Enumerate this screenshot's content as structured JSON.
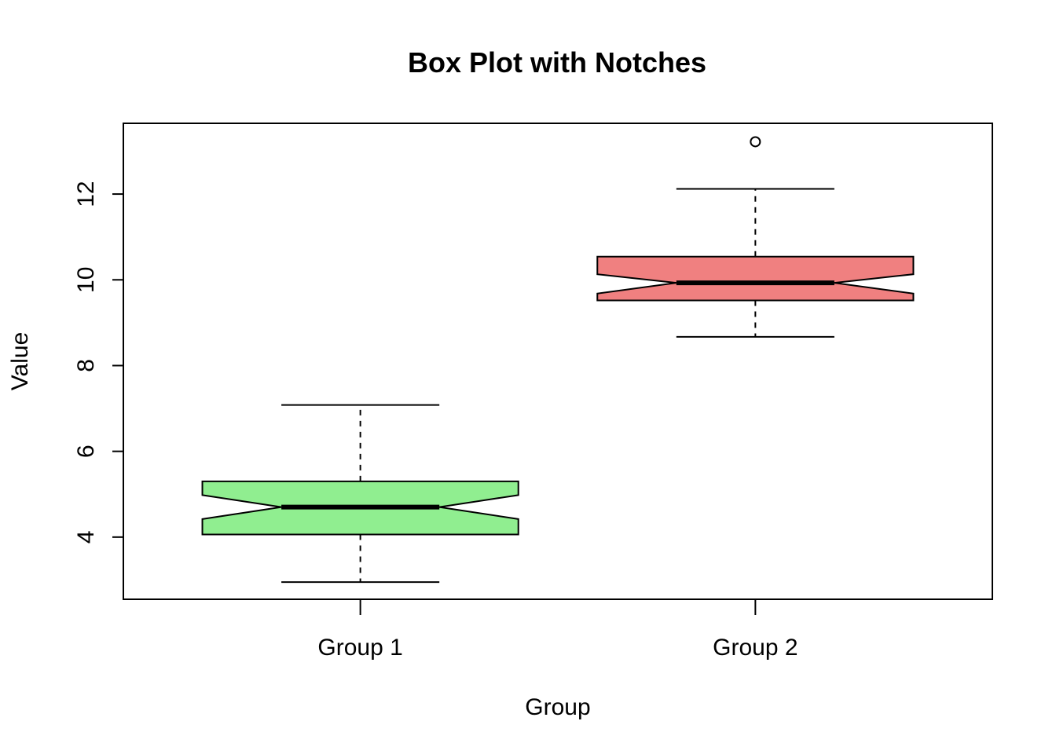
{
  "chart_data": {
    "type": "box",
    "title": "Box Plot with Notches",
    "xlabel": "Group",
    "ylabel": "Value",
    "ylim": [
      2.55,
      13.65
    ],
    "y_ticks": [
      4,
      6,
      8,
      10,
      12
    ],
    "y_tick_labels": [
      "4",
      "6",
      "8",
      "10",
      "12"
    ],
    "notched": true,
    "categories": [
      "Group 1",
      "Group 2"
    ],
    "boxes": [
      {
        "name": "Group 1",
        "color": "#90EE90",
        "whisker_low": 2.95,
        "q1": 4.06,
        "notch_low": 4.42,
        "median": 4.7,
        "notch_high": 4.98,
        "q3": 5.3,
        "whisker_high": 7.08,
        "outliers": []
      },
      {
        "name": "Group 2",
        "color": "#F08080",
        "whisker_low": 8.67,
        "q1": 9.52,
        "notch_low": 9.68,
        "median": 9.93,
        "notch_high": 10.13,
        "q3": 10.54,
        "whisker_high": 12.12,
        "outliers": [
          13.22
        ]
      }
    ]
  }
}
